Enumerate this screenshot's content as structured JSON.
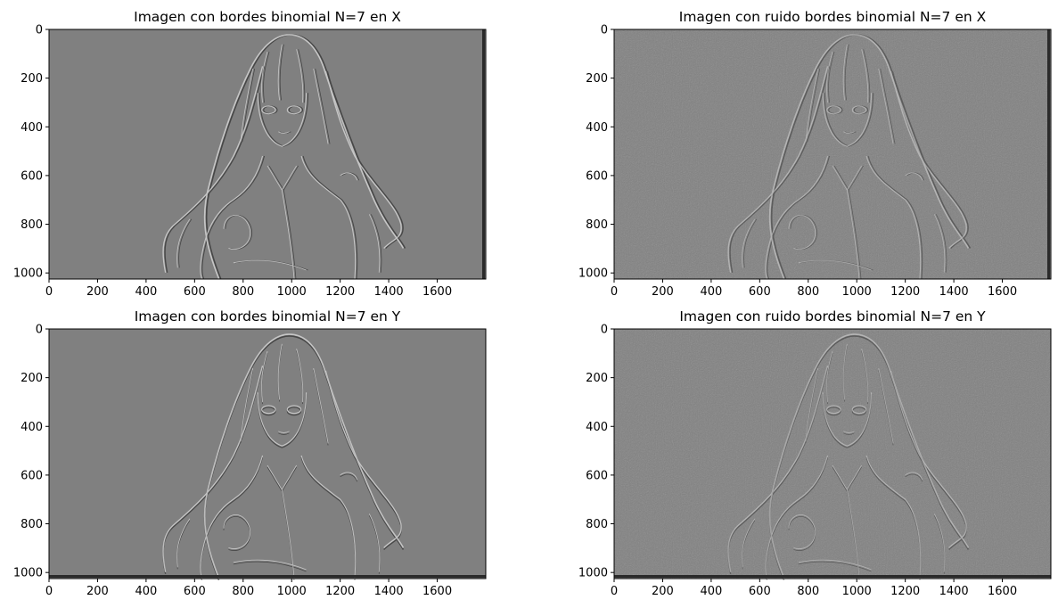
{
  "chart_data": [
    {
      "type": "image",
      "title": "Imagen con bordes binomial N=7 en X",
      "xticks": [
        0,
        200,
        400,
        600,
        800,
        1000,
        1200,
        1400,
        1600
      ],
      "yticks": [
        0,
        200,
        400,
        600,
        800,
        1000
      ],
      "xlim": [
        0,
        1800
      ],
      "ylim": [
        1025,
        0
      ],
      "colormap": "gray",
      "noise": false,
      "direction": "x"
    },
    {
      "type": "image",
      "title": "Imagen con ruido bordes binomial N=7 en X",
      "xticks": [
        0,
        200,
        400,
        600,
        800,
        1000,
        1200,
        1400,
        1600
      ],
      "yticks": [
        0,
        200,
        400,
        600,
        800,
        1000
      ],
      "xlim": [
        0,
        1800
      ],
      "ylim": [
        1025,
        0
      ],
      "colormap": "gray",
      "noise": true,
      "direction": "x"
    },
    {
      "type": "image",
      "title": "Imagen con bordes binomial N=7 en Y",
      "xticks": [
        0,
        200,
        400,
        600,
        800,
        1000,
        1200,
        1400,
        1600
      ],
      "yticks": [
        0,
        200,
        400,
        600,
        800,
        1000
      ],
      "xlim": [
        0,
        1800
      ],
      "ylim": [
        1025,
        0
      ],
      "colormap": "gray",
      "noise": false,
      "direction": "y"
    },
    {
      "type": "image",
      "title": "Imagen con ruido bordes binomial N=7 en Y",
      "xticks": [
        0,
        200,
        400,
        600,
        800,
        1000,
        1200,
        1400,
        1600
      ],
      "yticks": [
        0,
        200,
        400,
        600,
        800,
        1000
      ],
      "xlim": [
        0,
        1800
      ],
      "ylim": [
        1025,
        0
      ],
      "colormap": "gray",
      "noise": true,
      "direction": "y"
    }
  ],
  "colors": {
    "background_gray": "#808080",
    "edge_light": "#d8d8d8",
    "edge_dark": "#3a3a3a"
  }
}
